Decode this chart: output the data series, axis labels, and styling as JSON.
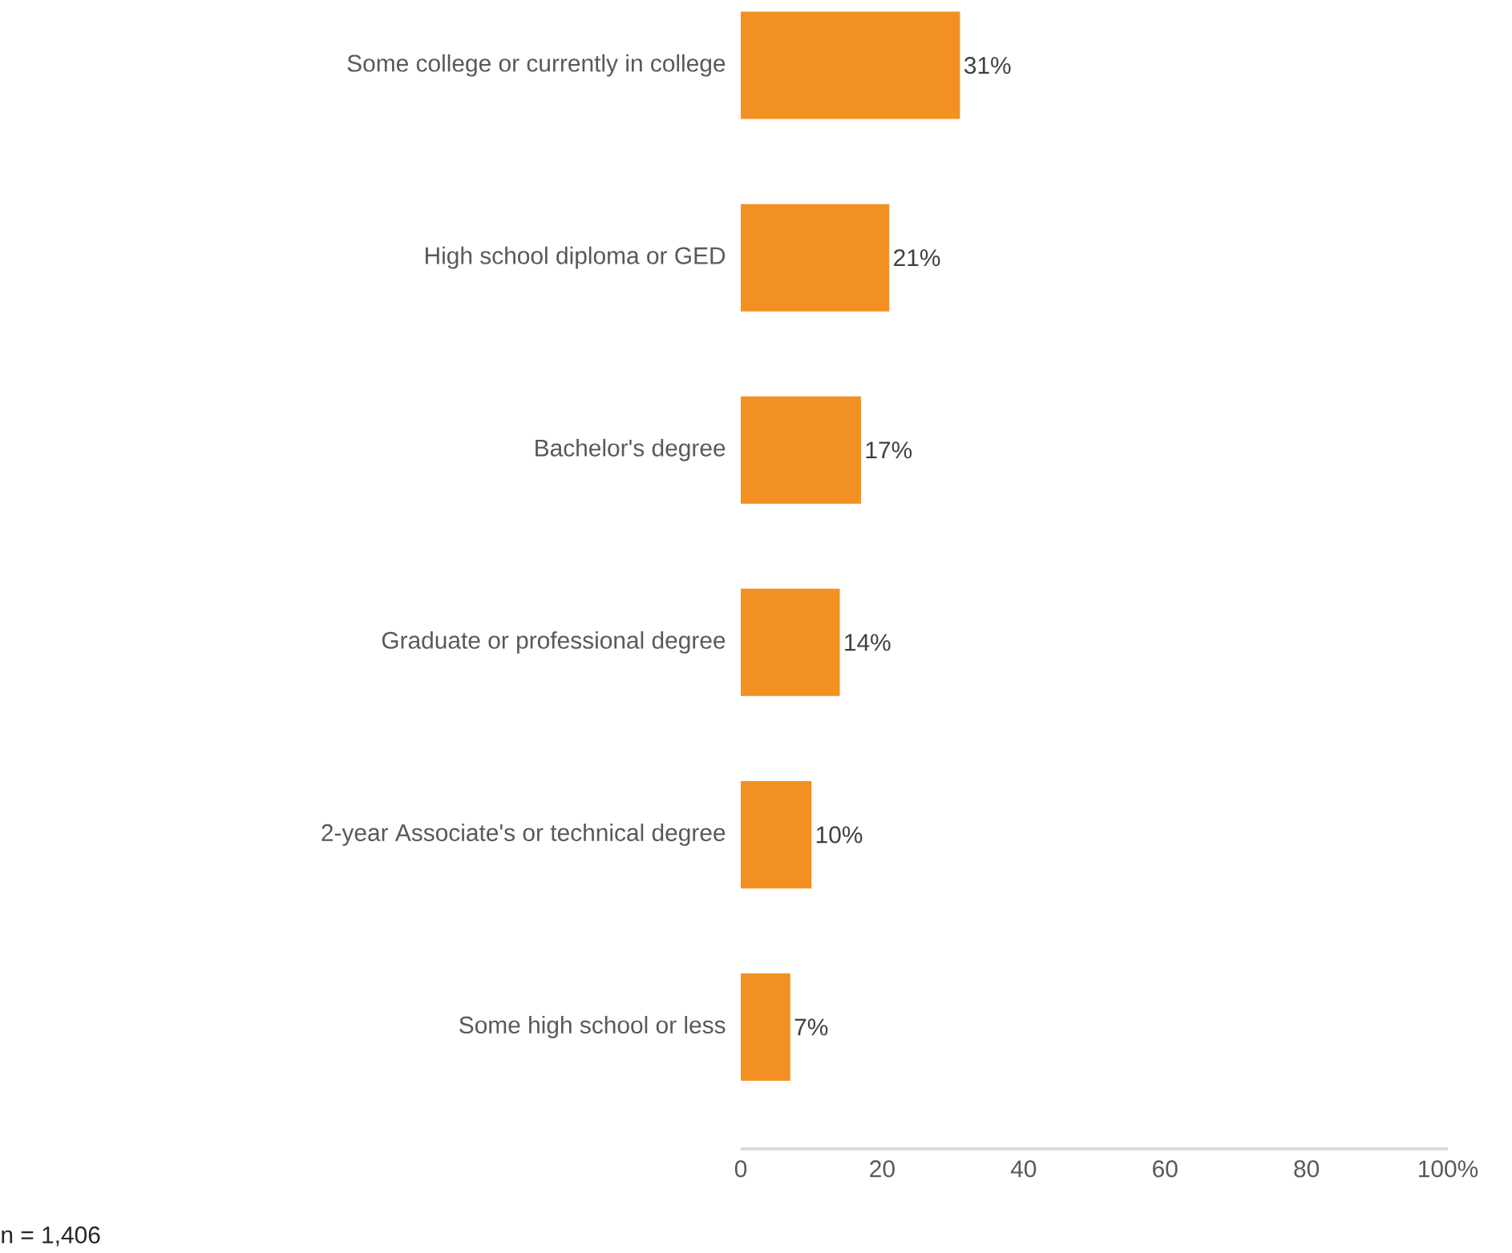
{
  "chart_data": {
    "type": "bar",
    "orientation": "horizontal",
    "categories": [
      "Some college or currently in college",
      "High school diploma or GED",
      "Bachelor's degree",
      "Graduate or professional degree",
      "2-year Associate's or technical degree",
      "Some high school or less"
    ],
    "values": [
      31,
      21,
      17,
      14,
      10,
      7
    ],
    "value_labels": [
      "31%",
      "21%",
      "17%",
      "14%",
      "10%",
      "7%"
    ],
    "color": "#f39022",
    "xlim": [
      0,
      100
    ],
    "xticks": [
      0,
      20,
      40,
      60,
      80,
      {
        "value": 100,
        "label": "100%"
      }
    ],
    "annotations": [
      "n = 1,406"
    ]
  }
}
